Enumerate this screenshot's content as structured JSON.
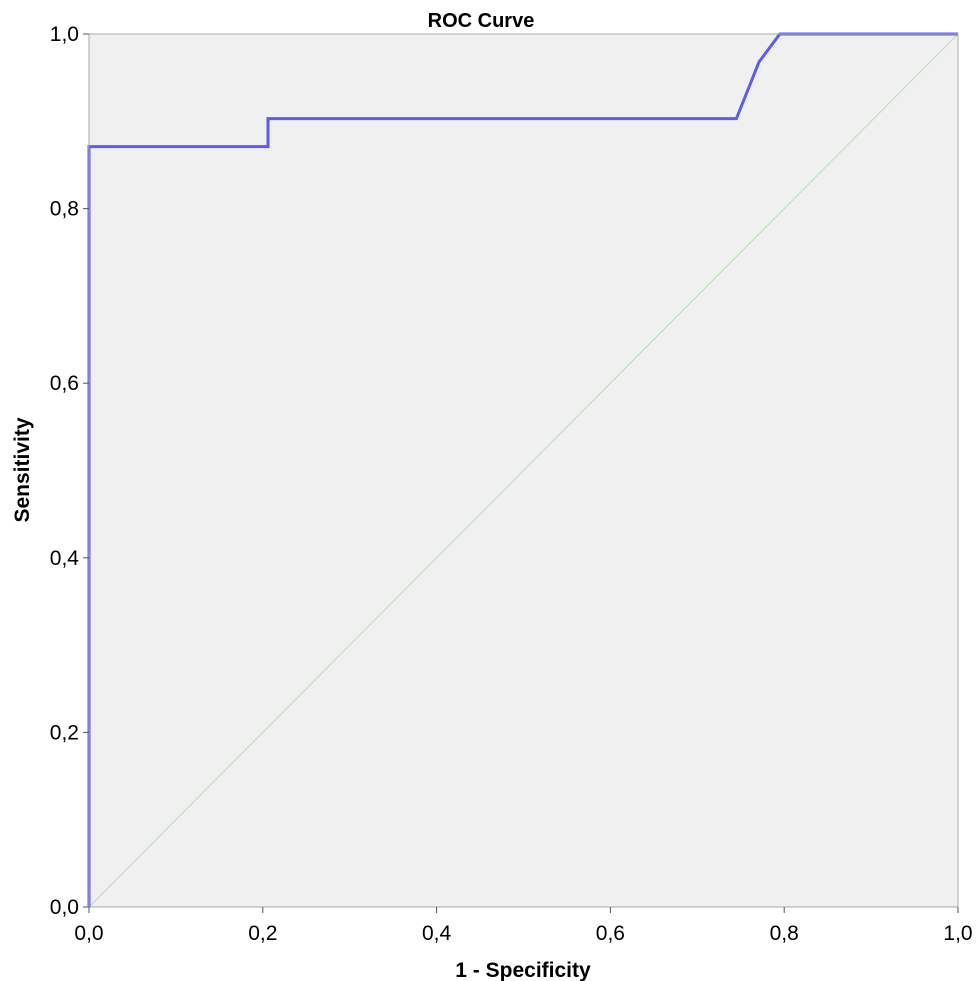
{
  "chart_data": {
    "type": "line",
    "title": "ROC Curve",
    "xlabel": "1 - Specificity",
    "ylabel": "Sensitivity",
    "xlim": [
      0,
      1
    ],
    "ylim": [
      0,
      1
    ],
    "x_ticks": [
      "0,0",
      "0,2",
      "0,4",
      "0,6",
      "0,8",
      "1,0"
    ],
    "y_ticks": [
      "0,0",
      "0,2",
      "0,4",
      "0,6",
      "0,8",
      "1,0"
    ],
    "grid": false,
    "background_color": "#f0f0f0",
    "series": [
      {
        "color": "#5c5cf0",
        "x": [
          0.0,
          0.0,
          0.206,
          0.206,
          0.745,
          0.771,
          0.795,
          1.0
        ],
        "y": [
          0.0,
          0.871,
          0.871,
          0.903,
          0.903,
          0.968,
          1.0,
          1.0
        ]
      },
      {
        "color": "#b8dcb8",
        "x": [
          0.0,
          1.0
        ],
        "y": [
          0.0,
          1.0
        ]
      }
    ]
  }
}
